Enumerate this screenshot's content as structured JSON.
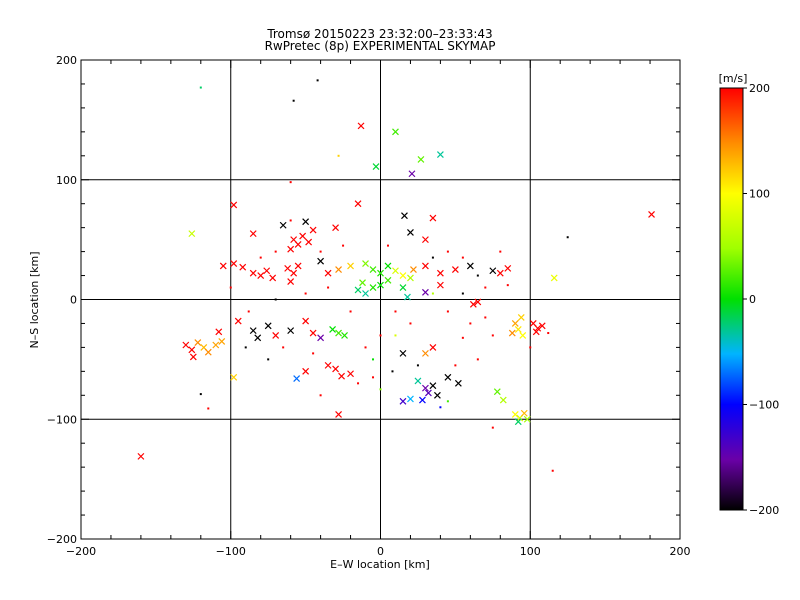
{
  "chart_data": {
    "type": "scatter",
    "title": "Tromsø 20150223 23:32:00–23:33:43",
    "subtitle": "RwPretec (8p) EXPERIMENTAL SKYMAP",
    "xlabel": "E–W location [km]",
    "ylabel": "N–S location [km]",
    "xlim": [
      -200,
      200
    ],
    "ylim": [
      -200,
      200
    ],
    "x_ticks": [
      -200,
      -100,
      0,
      100,
      200
    ],
    "y_ticks": [
      -200,
      -100,
      0,
      100,
      200
    ],
    "x_tick_labels": [
      "−200",
      "−100",
      "0",
      "100",
      "200"
    ],
    "y_tick_labels": [
      "−200",
      "−100",
      "0",
      "100",
      "200"
    ],
    "grid": true,
    "colorbar": {
      "label": "[m/s]",
      "range": [
        -200,
        200
      ],
      "ticks": [
        200,
        100,
        0,
        -100,
        -200
      ],
      "tick_labels": [
        "200",
        "100",
        "0",
        "−100",
        "−200"
      ]
    },
    "points": [
      {
        "x": -120,
        "y": 177,
        "v": -20,
        "m": "d"
      },
      {
        "x": -58,
        "y": 166,
        "v": -200,
        "m": "d"
      },
      {
        "x": -42,
        "y": 183,
        "v": -200,
        "m": "d"
      },
      {
        "x": -13,
        "y": 145,
        "v": 200,
        "m": "x"
      },
      {
        "x": 10,
        "y": 140,
        "v": 20,
        "m": "x"
      },
      {
        "x": 40,
        "y": 121,
        "v": -30,
        "m": "x"
      },
      {
        "x": 27,
        "y": 117,
        "v": 30,
        "m": "x"
      },
      {
        "x": -3,
        "y": 111,
        "v": -10,
        "m": "x"
      },
      {
        "x": 21,
        "y": 105,
        "v": -150,
        "m": "x"
      },
      {
        "x": -28,
        "y": 120,
        "v": 120,
        "m": "d"
      },
      {
        "x": -60,
        "y": 98,
        "v": 200,
        "m": "d"
      },
      {
        "x": 181,
        "y": 71,
        "v": 200,
        "m": "x"
      },
      {
        "x": -126,
        "y": 55,
        "v": 70,
        "m": "x"
      },
      {
        "x": -98,
        "y": 79,
        "v": 200,
        "m": "x"
      },
      {
        "x": -65,
        "y": 62,
        "v": -200,
        "m": "x"
      },
      {
        "x": -50,
        "y": 65,
        "v": -200,
        "m": "x"
      },
      {
        "x": -45,
        "y": 58,
        "v": 200,
        "m": "x"
      },
      {
        "x": -58,
        "y": 50,
        "v": 200,
        "m": "x"
      },
      {
        "x": -55,
        "y": 46,
        "v": 200,
        "m": "x"
      },
      {
        "x": -52,
        "y": 53,
        "v": 200,
        "m": "x"
      },
      {
        "x": -48,
        "y": 48,
        "v": 200,
        "m": "x"
      },
      {
        "x": -60,
        "y": 42,
        "v": 200,
        "m": "x"
      },
      {
        "x": -15,
        "y": 80,
        "v": 200,
        "m": "x"
      },
      {
        "x": -30,
        "y": 60,
        "v": 200,
        "m": "x"
      },
      {
        "x": 16,
        "y": 70,
        "v": -200,
        "m": "x"
      },
      {
        "x": 35,
        "y": 68,
        "v": 200,
        "m": "x"
      },
      {
        "x": 20,
        "y": 56,
        "v": -200,
        "m": "x"
      },
      {
        "x": 30,
        "y": 50,
        "v": 200,
        "m": "x"
      },
      {
        "x": 125,
        "y": 52,
        "v": -200,
        "m": "d"
      },
      {
        "x": -85,
        "y": 55,
        "v": 200,
        "m": "x"
      },
      {
        "x": -98,
        "y": 30,
        "v": 200,
        "m": "x"
      },
      {
        "x": -105,
        "y": 28,
        "v": 200,
        "m": "x"
      },
      {
        "x": -92,
        "y": 27,
        "v": 200,
        "m": "x"
      },
      {
        "x": -85,
        "y": 22,
        "v": 200,
        "m": "x"
      },
      {
        "x": -80,
        "y": 20,
        "v": 200,
        "m": "x"
      },
      {
        "x": -76,
        "y": 24,
        "v": 200,
        "m": "x"
      },
      {
        "x": -72,
        "y": 18,
        "v": 200,
        "m": "x"
      },
      {
        "x": -62,
        "y": 26,
        "v": 200,
        "m": "x"
      },
      {
        "x": -58,
        "y": 22,
        "v": 200,
        "m": "x"
      },
      {
        "x": -55,
        "y": 28,
        "v": 200,
        "m": "x"
      },
      {
        "x": -60,
        "y": 15,
        "v": 200,
        "m": "x"
      },
      {
        "x": -40,
        "y": 32,
        "v": -200,
        "m": "x"
      },
      {
        "x": -35,
        "y": 22,
        "v": 200,
        "m": "x"
      },
      {
        "x": -28,
        "y": 25,
        "v": 150,
        "m": "x"
      },
      {
        "x": -20,
        "y": 28,
        "v": 120,
        "m": "x"
      },
      {
        "x": -10,
        "y": 30,
        "v": 40,
        "m": "x"
      },
      {
        "x": -5,
        "y": 25,
        "v": 20,
        "m": "x"
      },
      {
        "x": 0,
        "y": 22,
        "v": 10,
        "m": "x"
      },
      {
        "x": 5,
        "y": 28,
        "v": 0,
        "m": "x"
      },
      {
        "x": 10,
        "y": 24,
        "v": 80,
        "m": "x"
      },
      {
        "x": 15,
        "y": 20,
        "v": 100,
        "m": "x"
      },
      {
        "x": 22,
        "y": 25,
        "v": 150,
        "m": "x"
      },
      {
        "x": 30,
        "y": 28,
        "v": 200,
        "m": "x"
      },
      {
        "x": 40,
        "y": 22,
        "v": 200,
        "m": "x"
      },
      {
        "x": 50,
        "y": 25,
        "v": 200,
        "m": "x"
      },
      {
        "x": 60,
        "y": 28,
        "v": -200,
        "m": "x"
      },
      {
        "x": 75,
        "y": 24,
        "v": -200,
        "m": "x"
      },
      {
        "x": 80,
        "y": 22,
        "v": 200,
        "m": "x"
      },
      {
        "x": 85,
        "y": 26,
        "v": 200,
        "m": "x"
      },
      {
        "x": 116,
        "y": 18,
        "v": 90,
        "m": "x"
      },
      {
        "x": -15,
        "y": 8,
        "v": -20,
        "m": "x"
      },
      {
        "x": -10,
        "y": 5,
        "v": -30,
        "m": "x"
      },
      {
        "x": -5,
        "y": 10,
        "v": 10,
        "m": "x"
      },
      {
        "x": -12,
        "y": 14,
        "v": 30,
        "m": "x"
      },
      {
        "x": 0,
        "y": 12,
        "v": 0,
        "m": "x"
      },
      {
        "x": 5,
        "y": 16,
        "v": 20,
        "m": "x"
      },
      {
        "x": 15,
        "y": 10,
        "v": -10,
        "m": "x"
      },
      {
        "x": 18,
        "y": 2,
        "v": -30,
        "m": "x"
      },
      {
        "x": 30,
        "y": 6,
        "v": -150,
        "m": "x"
      },
      {
        "x": 20,
        "y": 18,
        "v": 60,
        "m": "x"
      },
      {
        "x": 65,
        "y": -2,
        "v": 200,
        "m": "x"
      },
      {
        "x": 62,
        "y": -4,
        "v": 200,
        "m": "x"
      },
      {
        "x": 40,
        "y": 12,
        "v": 200,
        "m": "x"
      },
      {
        "x": 94,
        "y": -15,
        "v": 120,
        "m": "x"
      },
      {
        "x": 90,
        "y": -20,
        "v": 140,
        "m": "x"
      },
      {
        "x": 92,
        "y": -25,
        "v": 110,
        "m": "x"
      },
      {
        "x": 88,
        "y": -28,
        "v": 150,
        "m": "x"
      },
      {
        "x": 95,
        "y": -30,
        "v": 100,
        "m": "x"
      },
      {
        "x": 102,
        "y": -20,
        "v": 200,
        "m": "x"
      },
      {
        "x": 105,
        "y": -24,
        "v": 200,
        "m": "x"
      },
      {
        "x": 108,
        "y": -22,
        "v": 200,
        "m": "x"
      },
      {
        "x": 104,
        "y": -27,
        "v": 200,
        "m": "x"
      },
      {
        "x": -130,
        "y": -38,
        "v": 200,
        "m": "x"
      },
      {
        "x": -126,
        "y": -42,
        "v": 200,
        "m": "x"
      },
      {
        "x": -122,
        "y": -36,
        "v": 150,
        "m": "x"
      },
      {
        "x": -118,
        "y": -40,
        "v": 130,
        "m": "x"
      },
      {
        "x": -115,
        "y": -44,
        "v": 150,
        "m": "x"
      },
      {
        "x": -110,
        "y": -38,
        "v": 140,
        "m": "x"
      },
      {
        "x": -106,
        "y": -35,
        "v": 140,
        "m": "x"
      },
      {
        "x": -125,
        "y": -48,
        "v": 200,
        "m": "x"
      },
      {
        "x": -108,
        "y": -27,
        "v": 200,
        "m": "x"
      },
      {
        "x": -95,
        "y": -18,
        "v": 200,
        "m": "x"
      },
      {
        "x": -85,
        "y": -26,
        "v": -200,
        "m": "x"
      },
      {
        "x": -82,
        "y": -32,
        "v": -200,
        "m": "x"
      },
      {
        "x": -75,
        "y": -22,
        "v": -200,
        "m": "x"
      },
      {
        "x": -70,
        "y": -30,
        "v": 200,
        "m": "x"
      },
      {
        "x": -60,
        "y": -26,
        "v": -200,
        "m": "x"
      },
      {
        "x": -50,
        "y": -18,
        "v": 200,
        "m": "x"
      },
      {
        "x": -45,
        "y": -28,
        "v": 200,
        "m": "x"
      },
      {
        "x": -40,
        "y": -32,
        "v": -150,
        "m": "x"
      },
      {
        "x": -32,
        "y": -25,
        "v": 0,
        "m": "x"
      },
      {
        "x": -28,
        "y": -28,
        "v": 20,
        "m": "x"
      },
      {
        "x": -24,
        "y": -30,
        "v": 10,
        "m": "x"
      },
      {
        "x": -56,
        "y": -66,
        "v": -70,
        "m": "x"
      },
      {
        "x": -50,
        "y": -60,
        "v": 200,
        "m": "x"
      },
      {
        "x": -35,
        "y": -55,
        "v": 200,
        "m": "x"
      },
      {
        "x": -30,
        "y": -58,
        "v": 200,
        "m": "x"
      },
      {
        "x": -26,
        "y": -64,
        "v": 200,
        "m": "x"
      },
      {
        "x": -20,
        "y": -62,
        "v": 200,
        "m": "x"
      },
      {
        "x": -28,
        "y": -96,
        "v": 200,
        "m": "x"
      },
      {
        "x": -98,
        "y": -65,
        "v": 120,
        "m": "x"
      },
      {
        "x": 15,
        "y": -45,
        "v": -200,
        "m": "x"
      },
      {
        "x": 30,
        "y": -45,
        "v": 150,
        "m": "x"
      },
      {
        "x": 35,
        "y": -40,
        "v": 200,
        "m": "x"
      },
      {
        "x": 25,
        "y": -68,
        "v": -30,
        "m": "x"
      },
      {
        "x": 30,
        "y": -74,
        "v": -150,
        "m": "x"
      },
      {
        "x": 32,
        "y": -78,
        "v": -140,
        "m": "x"
      },
      {
        "x": 35,
        "y": -72,
        "v": -200,
        "m": "x"
      },
      {
        "x": 28,
        "y": -84,
        "v": -100,
        "m": "x"
      },
      {
        "x": 38,
        "y": -80,
        "v": -200,
        "m": "x"
      },
      {
        "x": 45,
        "y": -65,
        "v": -200,
        "m": "x"
      },
      {
        "x": 52,
        "y": -70,
        "v": -200,
        "m": "x"
      },
      {
        "x": 20,
        "y": -83,
        "v": -50,
        "m": "x"
      },
      {
        "x": 15,
        "y": -85,
        "v": -130,
        "m": "x"
      },
      {
        "x": 78,
        "y": -77,
        "v": 30,
        "m": "x"
      },
      {
        "x": 82,
        "y": -84,
        "v": 60,
        "m": "x"
      },
      {
        "x": 90,
        "y": -96,
        "v": 100,
        "m": "x"
      },
      {
        "x": 93,
        "y": -99,
        "v": 80,
        "m": "x"
      },
      {
        "x": 96,
        "y": -95,
        "v": 130,
        "m": "x"
      },
      {
        "x": 92,
        "y": -102,
        "v": -20,
        "m": "x"
      },
      {
        "x": 98,
        "y": -100,
        "v": 50,
        "m": "x"
      },
      {
        "x": -160,
        "y": -131,
        "v": 200,
        "m": "x"
      },
      {
        "x": -115,
        "y": -91,
        "v": 200,
        "m": "d"
      },
      {
        "x": -120,
        "y": -79,
        "v": -200,
        "m": "d"
      },
      {
        "x": 115,
        "y": -143,
        "v": 200,
        "m": "d"
      },
      {
        "x": 75,
        "y": -107,
        "v": 200,
        "m": "d"
      },
      {
        "x": -60,
        "y": 66,
        "v": 200,
        "m": "d"
      },
      {
        "x": -40,
        "y": 40,
        "v": 200,
        "m": "d"
      },
      {
        "x": -25,
        "y": 45,
        "v": 200,
        "m": "d"
      },
      {
        "x": 5,
        "y": 45,
        "v": 200,
        "m": "d"
      },
      {
        "x": 45,
        "y": 40,
        "v": 200,
        "m": "d"
      },
      {
        "x": 55,
        "y": 35,
        "v": 200,
        "m": "d"
      },
      {
        "x": 65,
        "y": 20,
        "v": -200,
        "m": "d"
      },
      {
        "x": 70,
        "y": 10,
        "v": 200,
        "m": "d"
      },
      {
        "x": 55,
        "y": 5,
        "v": -200,
        "m": "d"
      },
      {
        "x": 45,
        "y": -10,
        "v": 200,
        "m": "d"
      },
      {
        "x": 60,
        "y": -20,
        "v": 200,
        "m": "d"
      },
      {
        "x": 70,
        "y": -15,
        "v": 200,
        "m": "d"
      },
      {
        "x": 75,
        "y": -30,
        "v": 200,
        "m": "d"
      },
      {
        "x": 55,
        "y": -32,
        "v": 200,
        "m": "d"
      },
      {
        "x": 65,
        "y": -50,
        "v": 200,
        "m": "d"
      },
      {
        "x": 50,
        "y": -55,
        "v": 200,
        "m": "d"
      },
      {
        "x": 10,
        "y": -10,
        "v": 200,
        "m": "d"
      },
      {
        "x": 20,
        "y": -20,
        "v": 200,
        "m": "d"
      },
      {
        "x": 0,
        "y": -30,
        "v": 200,
        "m": "d"
      },
      {
        "x": -10,
        "y": -40,
        "v": 200,
        "m": "d"
      },
      {
        "x": -15,
        "y": -70,
        "v": 200,
        "m": "d"
      },
      {
        "x": -40,
        "y": -80,
        "v": 200,
        "m": "d"
      },
      {
        "x": -45,
        "y": -45,
        "v": 200,
        "m": "d"
      },
      {
        "x": -65,
        "y": -40,
        "v": 200,
        "m": "d"
      },
      {
        "x": -75,
        "y": -50,
        "v": -200,
        "m": "d"
      },
      {
        "x": -90,
        "y": -40,
        "v": -200,
        "m": "d"
      },
      {
        "x": -88,
        "y": -10,
        "v": 200,
        "m": "d"
      },
      {
        "x": -70,
        "y": 0,
        "v": -200,
        "m": "d"
      },
      {
        "x": -50,
        "y": 5,
        "v": 200,
        "m": "d"
      },
      {
        "x": -35,
        "y": 10,
        "v": 200,
        "m": "d"
      },
      {
        "x": -20,
        "y": -10,
        "v": 200,
        "m": "d"
      },
      {
        "x": 35,
        "y": 35,
        "v": -200,
        "m": "d"
      },
      {
        "x": -70,
        "y": 40,
        "v": 200,
        "m": "d"
      },
      {
        "x": -80,
        "y": 35,
        "v": 200,
        "m": "d"
      },
      {
        "x": 85,
        "y": 12,
        "v": 200,
        "m": "d"
      },
      {
        "x": 8,
        "y": -60,
        "v": -200,
        "m": "d"
      },
      {
        "x": 25,
        "y": -55,
        "v": -200,
        "m": "d"
      },
      {
        "x": 40,
        "y": -90,
        "v": -100,
        "m": "d"
      },
      {
        "x": 45,
        "y": -85,
        "v": 20,
        "m": "d"
      },
      {
        "x": -5,
        "y": -50,
        "v": 0,
        "m": "d"
      },
      {
        "x": -5,
        "y": -65,
        "v": 200,
        "m": "d"
      },
      {
        "x": 0,
        "y": -75,
        "v": 40,
        "m": "d"
      },
      {
        "x": 10,
        "y": -30,
        "v": 80,
        "m": "d"
      },
      {
        "x": 35,
        "y": 5,
        "v": 60,
        "m": "d"
      },
      {
        "x": 100,
        "y": -40,
        "v": 200,
        "m": "d"
      },
      {
        "x": 112,
        "y": -28,
        "v": 200,
        "m": "d"
      },
      {
        "x": 80,
        "y": 40,
        "v": 200,
        "m": "d"
      },
      {
        "x": -100,
        "y": 10,
        "v": 200,
        "m": "d"
      }
    ]
  }
}
